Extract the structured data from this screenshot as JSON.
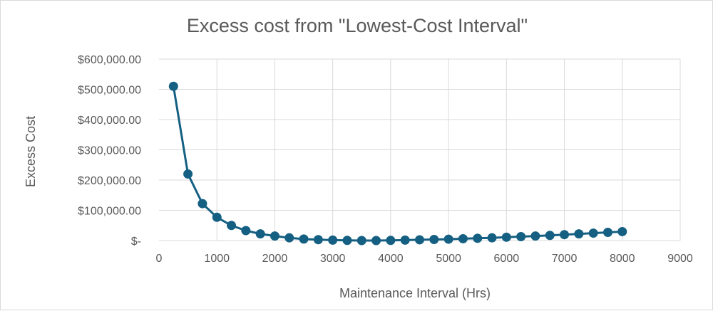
{
  "chart_data": {
    "type": "scatter",
    "title": "Excess cost from \"Lowest-Cost Interval\"",
    "xlabel": "Maintenance Interval (Hrs)",
    "ylabel": "Excess Cost",
    "xlim": [
      0,
      9000
    ],
    "ylim": [
      0,
      600000
    ],
    "x_ticks": [
      0,
      1000,
      2000,
      3000,
      4000,
      5000,
      6000,
      7000,
      8000,
      9000
    ],
    "x_tick_labels": [
      "0",
      "1000",
      "2000",
      "3000",
      "4000",
      "5000",
      "6000",
      "7000",
      "8000",
      "9000"
    ],
    "y_ticks": [
      0,
      100000,
      200000,
      300000,
      400000,
      500000,
      600000
    ],
    "y_tick_labels": [
      "$-",
      "$100,000.00",
      "$200,000.00",
      "$300,000.00",
      "$400,000.00",
      "$500,000.00",
      "$600,000.00"
    ],
    "grid": true,
    "legend": "none",
    "series": [
      {
        "color": "#156082",
        "x": [
          250,
          500,
          750,
          1000,
          1250,
          1500,
          1750,
          2000,
          2250,
          2500,
          2750,
          3000,
          3250,
          3500,
          3750,
          4000,
          4250,
          4500,
          4750,
          5000,
          5250,
          5500,
          5750,
          6000,
          6250,
          6500,
          6750,
          7000,
          7250,
          7500,
          7750,
          8000
        ],
        "y": [
          510000,
          220000,
          122000,
          77000,
          50000,
          33000,
          22000,
          15000,
          9000,
          5000,
          3000,
          1500,
          500,
          0,
          0,
          500,
          1500,
          2500,
          3500,
          4500,
          6000,
          7500,
          9000,
          11000,
          13000,
          15000,
          17000,
          19500,
          22000,
          24500,
          27000,
          29500
        ]
      }
    ]
  }
}
